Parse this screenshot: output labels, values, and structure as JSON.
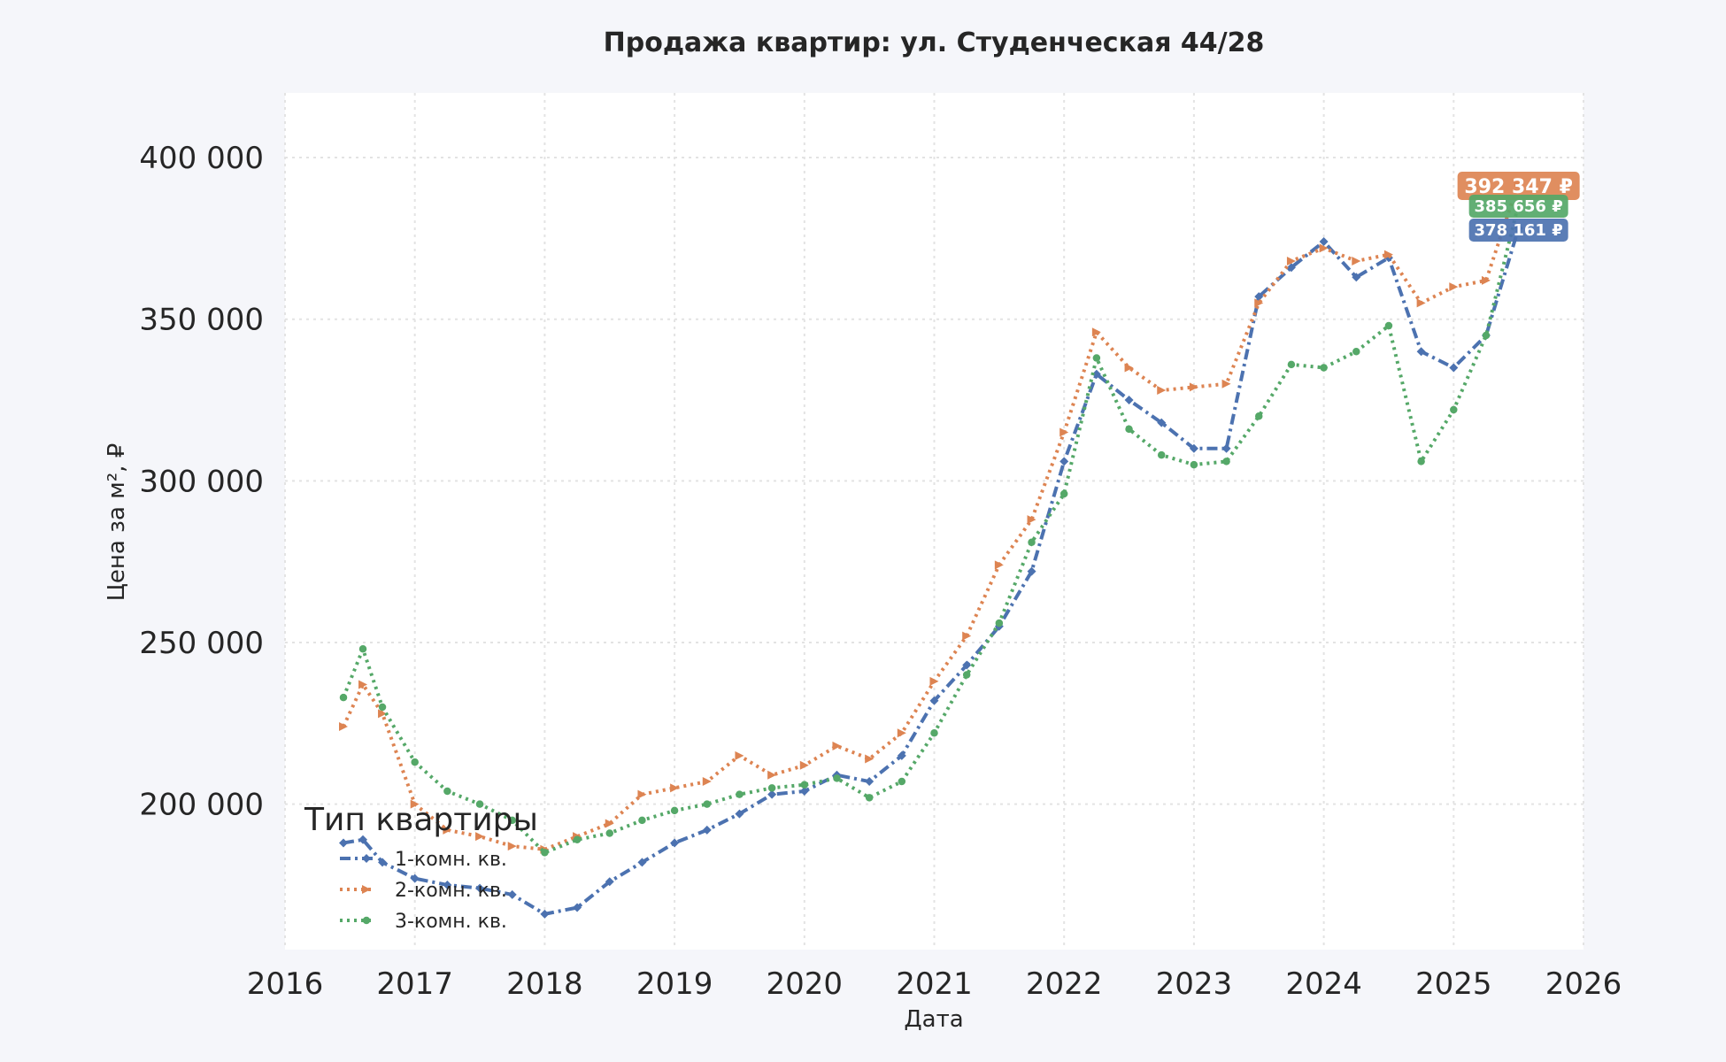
{
  "chart_data": {
    "type": "line",
    "title": "Продажа квартир: ул. Студенческая 44/28",
    "xlabel": "Дата",
    "ylabel": "Цена за м², ₽",
    "xlim": [
      2016,
      2026
    ],
    "ylim": [
      155000,
      420000
    ],
    "x_ticks": [
      2016,
      2017,
      2018,
      2019,
      2020,
      2021,
      2022,
      2023,
      2024,
      2025,
      2026
    ],
    "x_tick_labels": [
      "2016",
      "2017",
      "2018",
      "2019",
      "2020",
      "2021",
      "2022",
      "2023",
      "2024",
      "2025",
      "2026"
    ],
    "y_ticks": [
      200000,
      250000,
      300000,
      350000,
      400000
    ],
    "y_tick_labels": [
      "200 000",
      "250 000",
      "300 000",
      "350 000",
      "400 000"
    ],
    "grid": true,
    "legend": {
      "title": "Тип квартиры",
      "position": "lower-left"
    },
    "x": [
      2016.45,
      2016.6,
      2016.75,
      2017.0,
      2017.25,
      2017.5,
      2017.75,
      2018.0,
      2018.25,
      2018.5,
      2018.75,
      2019.0,
      2019.25,
      2019.5,
      2019.75,
      2020.0,
      2020.25,
      2020.5,
      2020.75,
      2021.0,
      2021.25,
      2021.5,
      2021.75,
      2022.0,
      2022.25,
      2022.5,
      2022.75,
      2023.0,
      2023.25,
      2023.5,
      2023.75,
      2024.0,
      2024.25,
      2024.5,
      2024.75,
      2025.0,
      2025.25,
      2025.5
    ],
    "series": [
      {
        "name": "1-комн. кв.",
        "color": "#4c72b0",
        "style": "dashdot",
        "marker": "diamond",
        "values": [
          188000,
          189000,
          182000,
          177000,
          175000,
          174000,
          172000,
          166000,
          168000,
          176000,
          182000,
          188000,
          192000,
          197000,
          203000,
          204000,
          209000,
          207000,
          215000,
          232000,
          243000,
          255000,
          272000,
          306000,
          333000,
          325000,
          318000,
          310000,
          310000,
          357000,
          366000,
          374000,
          363000,
          369000,
          340000,
          335000,
          345000,
          378161
        ]
      },
      {
        "name": "2-комн. кв.",
        "color": "#dd8452",
        "style": "dotted",
        "marker": "triangle",
        "values": [
          224000,
          237000,
          228000,
          200000,
          192000,
          190000,
          187000,
          186000,
          190000,
          194000,
          203000,
          205000,
          207000,
          215000,
          209000,
          212000,
          218000,
          214000,
          222000,
          238000,
          252000,
          274000,
          288000,
          315000,
          346000,
          335000,
          328000,
          329000,
          330000,
          355000,
          368000,
          372000,
          368000,
          370000,
          355000,
          360000,
          362000,
          392347
        ]
      },
      {
        "name": "3-комн. кв.",
        "color": "#55a868",
        "style": "dotted",
        "marker": "circle",
        "values": [
          233000,
          248000,
          230000,
          213000,
          204000,
          200000,
          195000,
          185000,
          189000,
          191000,
          195000,
          198000,
          200000,
          203000,
          205000,
          206000,
          208000,
          202000,
          207000,
          222000,
          240000,
          256000,
          281000,
          296000,
          338000,
          316000,
          308000,
          305000,
          306000,
          320000,
          336000,
          335000,
          340000,
          348000,
          306000,
          322000,
          345000,
          385656
        ]
      }
    ],
    "end_labels": [
      "392 347 ₽",
      "385 656 ₽",
      "378 161 ₽"
    ]
  }
}
